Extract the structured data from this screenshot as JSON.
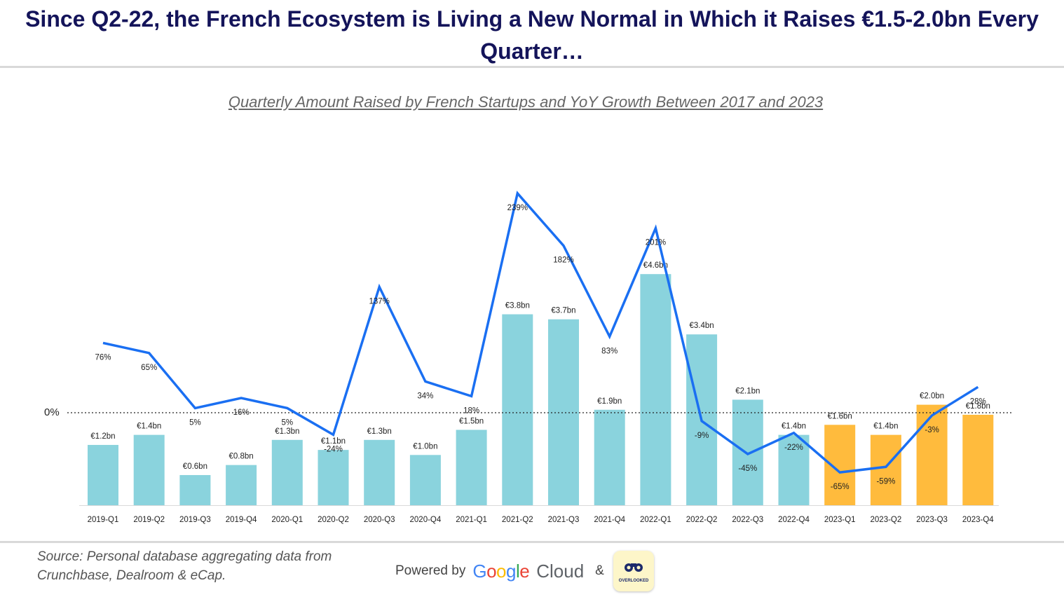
{
  "header": {
    "title_line1": "Since Q2-22, the French Ecosystem is Living a New Normal in Which it Raises €1.5-2.0bn Every",
    "title_line2": "Quarter…"
  },
  "chart_data": {
    "type": "bar",
    "title": "Quarterly Amount Raised by French Startups and YoY Growth Between 2017 and 2023",
    "categories": [
      "2019-Q1",
      "2019-Q2",
      "2019-Q3",
      "2019-Q4",
      "2020-Q1",
      "2020-Q2",
      "2020-Q3",
      "2020-Q4",
      "2021-Q1",
      "2021-Q2",
      "2021-Q3",
      "2021-Q4",
      "2022-Q1",
      "2022-Q2",
      "2022-Q3",
      "2022-Q4",
      "2023-Q1",
      "2023-Q2",
      "2023-Q3",
      "2023-Q4"
    ],
    "series": [
      {
        "values": [
          1.2,
          1.4,
          0.6,
          0.8,
          1.3,
          1.1,
          1.3,
          1.0,
          1.5,
          3.8,
          3.7,
          1.9,
          4.6,
          3.4,
          2.1,
          1.4,
          1.6,
          1.4,
          2.0,
          1.8
        ],
        "labels": [
          "€1.2bn",
          "€1.4bn",
          "€0.6bn",
          "€0.8bn",
          "€1.3bn",
          "€1.1bn",
          "€1.3bn",
          "€1.0bn",
          "€1.5bn",
          "€3.8bn",
          "€3.7bn",
          "€1.9bn",
          "€4.6bn",
          "€3.4bn",
          "€2.1bn",
          "€1.4bn",
          "€1.6bn",
          "€1.4bn",
          "€2.0bn",
          "€1.8bn"
        ]
      },
      {
        "values": [
          76,
          65,
          5,
          16,
          5,
          -24,
          137,
          34,
          18,
          239,
          182,
          83,
          201,
          -9,
          -45,
          -22,
          -65,
          -59,
          -3,
          28
        ],
        "labels": [
          "76%",
          "65%",
          "5%",
          "16%",
          "5%",
          "-24%",
          "137%",
          "34%",
          "18%",
          "239%",
          "182%",
          "83%",
          "201%",
          "-9%",
          "-45%",
          "-22%",
          "-65%",
          "-59%",
          "-3%",
          "28%"
        ]
      }
    ],
    "zero_label": "0%",
    "colors": {
      "bar_default": "#8ad3dd",
      "bar_highlight": "#ffbb3d",
      "line": "#1a6ff2"
    },
    "highlighted_categories": [
      "2023-Q1",
      "2023-Q2",
      "2023-Q3",
      "2023-Q4"
    ],
    "grid": false
  },
  "footer": {
    "source_line1": "Source: Personal database aggregating data from",
    "source_line2": "Crunchbase, Dealroom & eCap.",
    "powered_by": "Powered by",
    "google_letters": [
      "G",
      "o",
      "o",
      "g",
      "l",
      "e"
    ],
    "google_colors": [
      "#4285F4",
      "#EA4335",
      "#FBBC05",
      "#4285F4",
      "#34A853",
      "#EA4335"
    ],
    "cloud": "Cloud",
    "ampersand": "&",
    "badge_icon": "binoculars-icon",
    "badge_text": "OVERLOOKED"
  }
}
